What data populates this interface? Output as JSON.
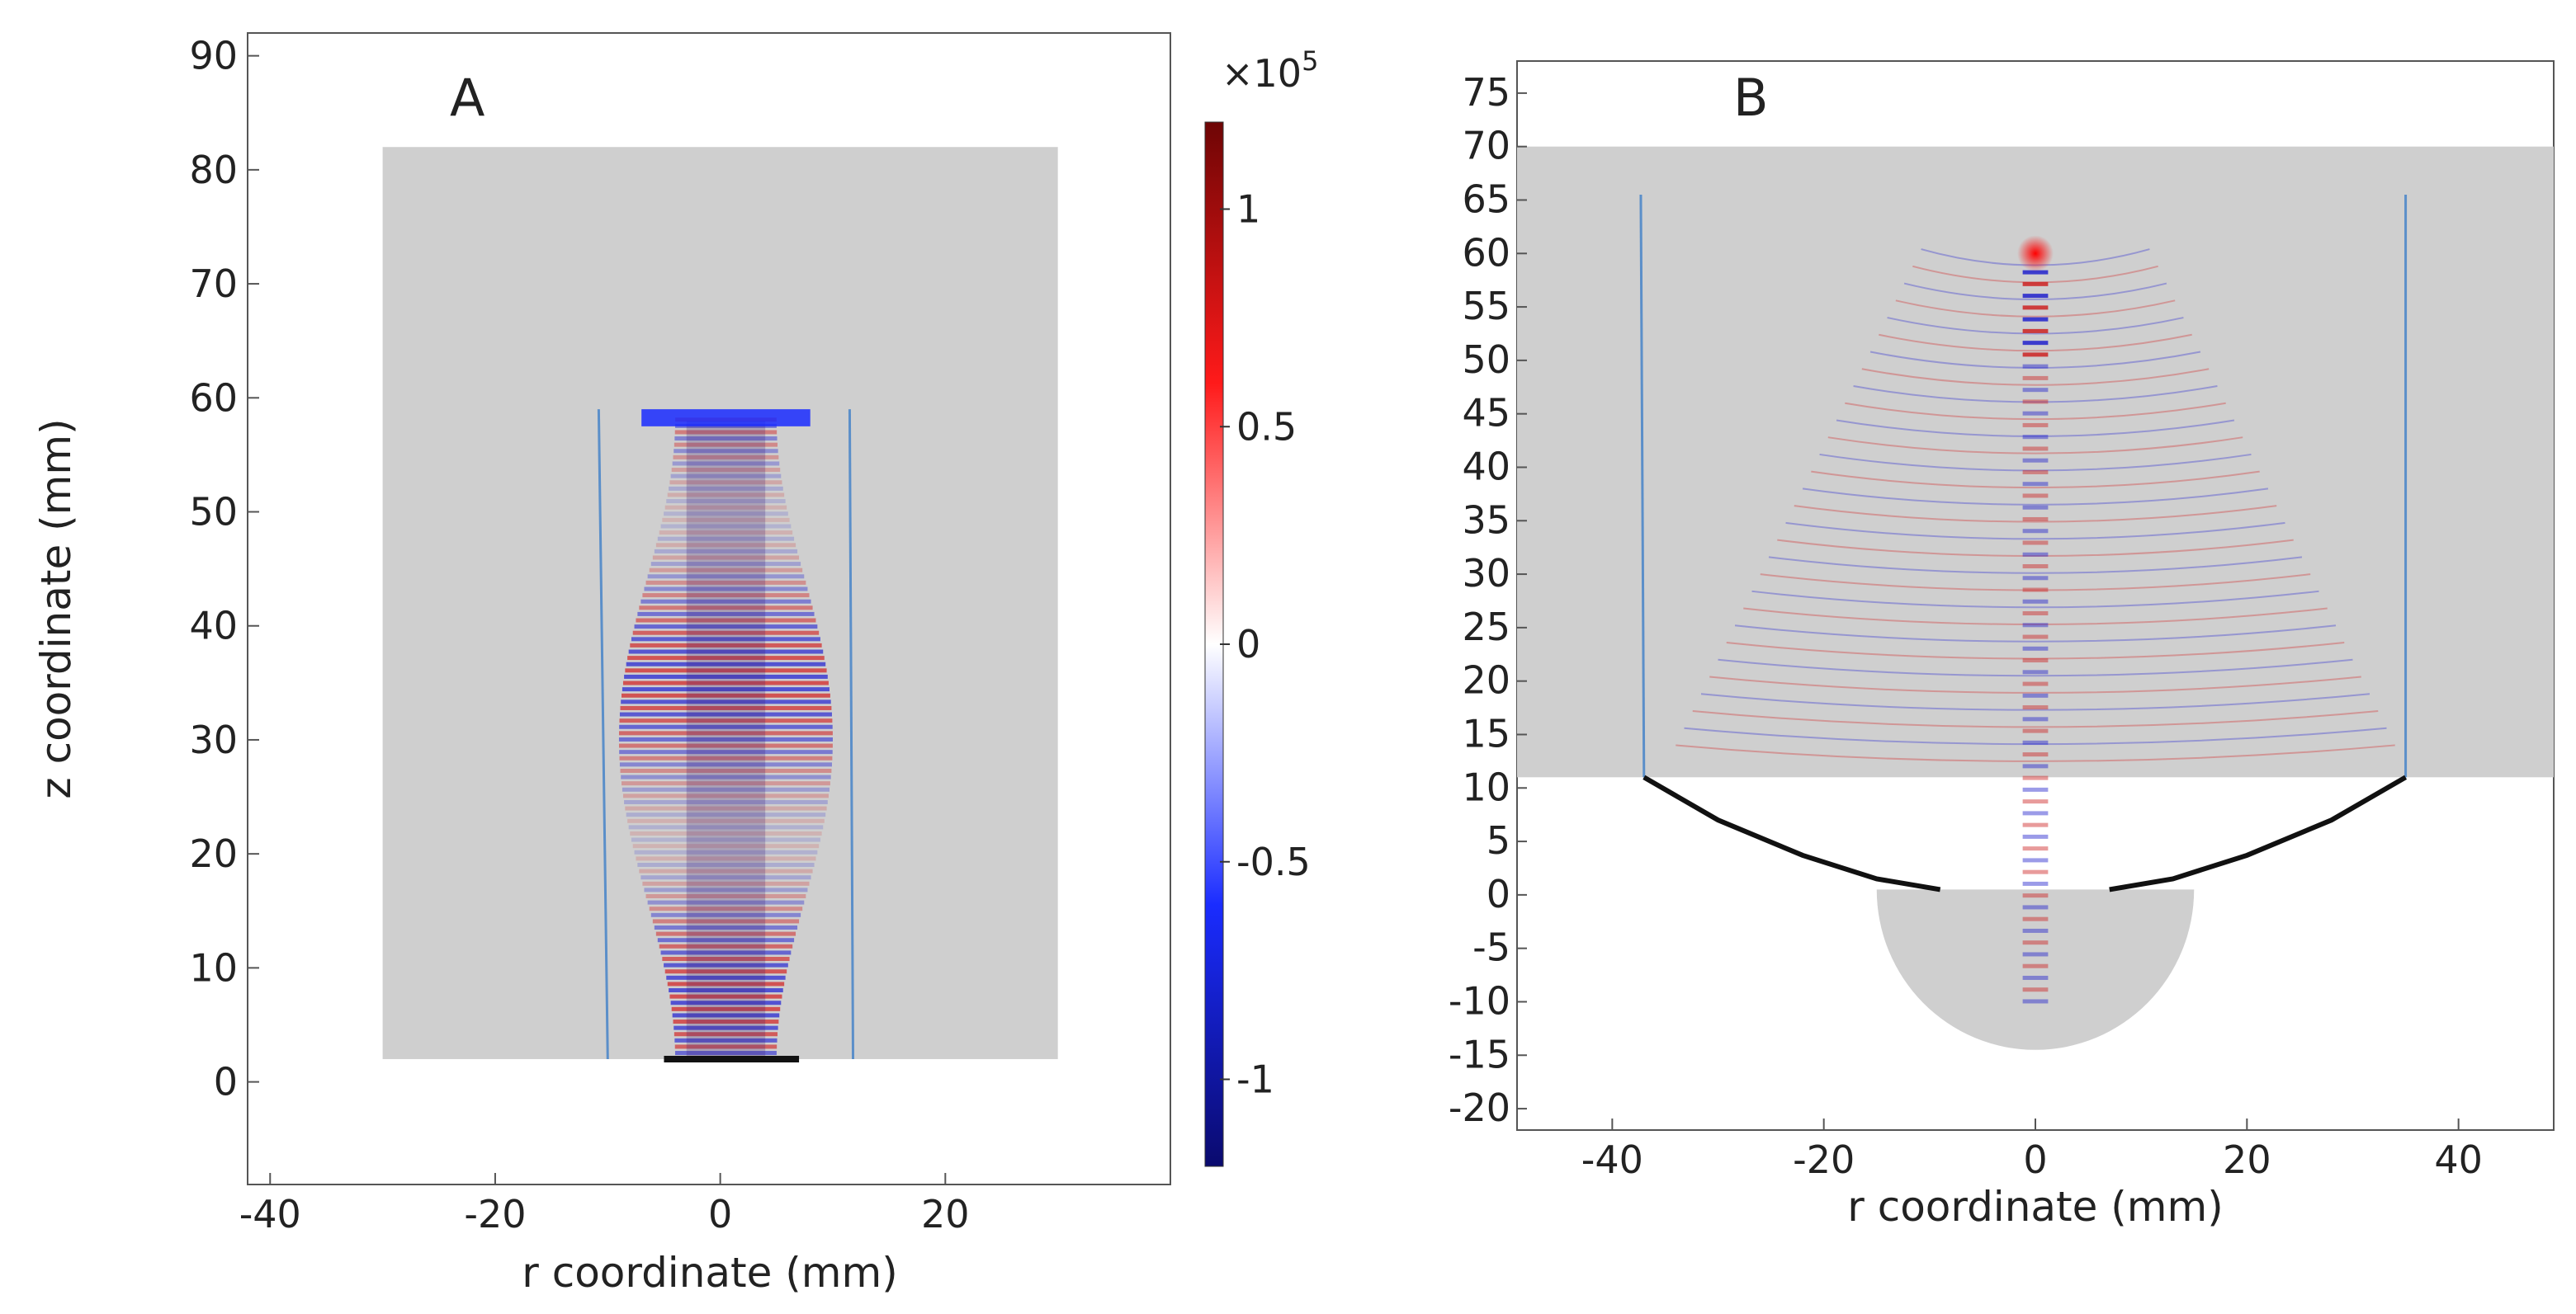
{
  "chart_data": [
    {
      "type": "heatmap",
      "panel_label": "A",
      "xlabel": "r coordinate (mm)",
      "ylabel": "z coordinate (mm)",
      "xlim": [
        -42,
        40
      ],
      "ylim": [
        -9,
        92
      ],
      "xticks": [
        -40,
        -20,
        0,
        20
      ],
      "yticks": [
        0,
        10,
        20,
        30,
        40,
        50,
        60,
        70,
        80,
        90
      ],
      "domain_extent": {
        "r": [
          -30,
          30
        ],
        "z": [
          2,
          82
        ]
      },
      "field_region": {
        "r": [
          -10.5,
          11.5
        ],
        "z": [
          2,
          59
        ]
      },
      "source_transducer": {
        "r": [
          -5,
          7
        ],
        "z": 2
      },
      "description_values": {
        "focus_z": 58,
        "min_field": -1.2,
        "max_field": 1.2
      },
      "colorbar": {
        "multiplier": "×10",
        "exponent": "5",
        "range": [
          -1.2,
          1.2
        ],
        "ticks": [
          1,
          0.5,
          0,
          -0.5,
          -1
        ],
        "tick_labels": [
          "1",
          "0.5",
          "0",
          "-0.5",
          "-1"
        ],
        "colors": [
          "#0a0a6e",
          "#1a2cff",
          "#ffffff",
          "#ff1a1a",
          "#6e0505"
        ]
      }
    },
    {
      "type": "heatmap",
      "panel_label": "B",
      "xlabel": "r coordinate (mm)",
      "ylabel": "",
      "xlim": [
        -49,
        49
      ],
      "ylim": [
        -22,
        78
      ],
      "xticks": [
        -40,
        -20,
        0,
        20,
        40
      ],
      "yticks": [
        -20,
        -15,
        -10,
        -5,
        0,
        5,
        10,
        15,
        20,
        25,
        30,
        35,
        40,
        45,
        50,
        55,
        60,
        65,
        70,
        75
      ],
      "domain_extent": {
        "r": [
          -49,
          49
        ],
        "z": [
          11,
          70
        ]
      },
      "lens_curve": [
        [
          -37,
          11
        ],
        [
          -30,
          7
        ],
        [
          -22,
          3.7
        ],
        [
          -15,
          1.5
        ],
        [
          -9,
          0.5
        ]
      ],
      "hemisphere": {
        "center_r": 0,
        "center_z": 0.5,
        "radius": 15
      },
      "side_walls_r": [
        -37,
        35
      ],
      "focus": {
        "r": 0,
        "z": 60
      }
    }
  ]
}
